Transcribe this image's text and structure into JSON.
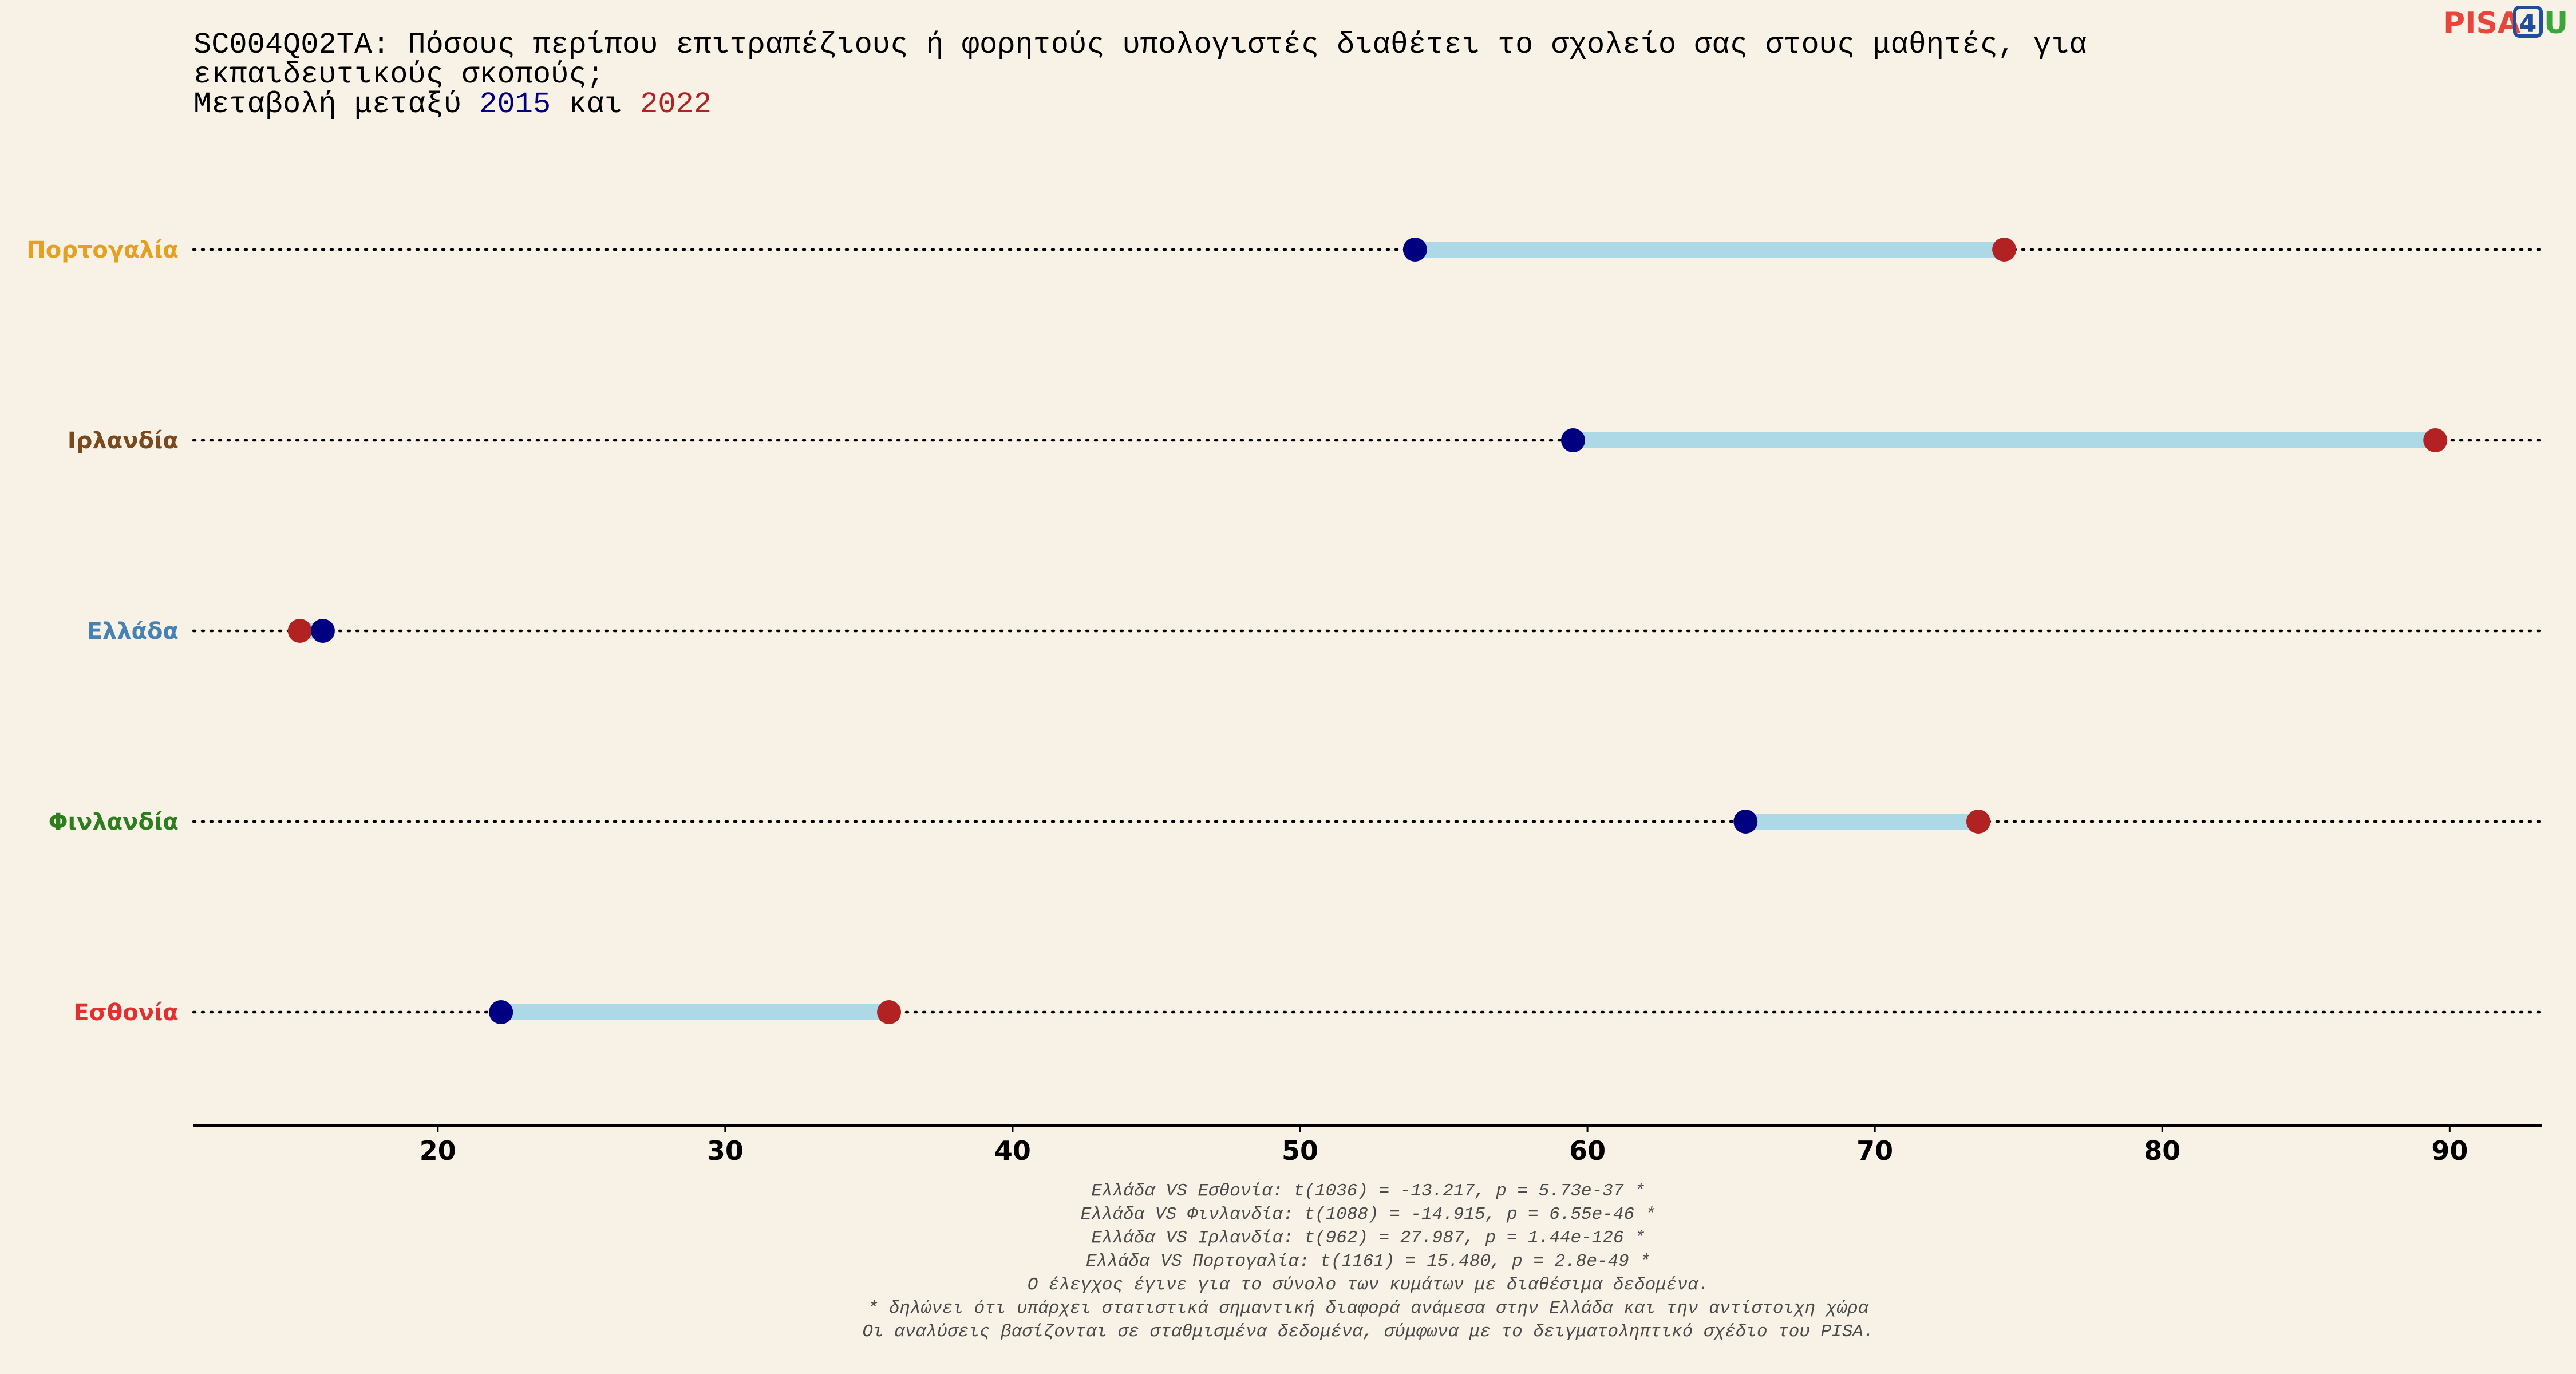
{
  "logo": {
    "part1": "PISA",
    "part2": "4",
    "part3": "U",
    "colors": {
      "part1": "#e8463c",
      "part2": "#1f4e9c",
      "part3": "#3aa53a"
    }
  },
  "chart_data": {
    "type": "dumbbell",
    "title": {
      "line1": "SC004Q02TA: Πόσους περίπου επιτραπέζιους ή φορητούς υπολογιστές διαθέτει το σχολείο σας στους μαθητές, για",
      "line2": "εκπαιδευτικούς σκοπούς;",
      "line3_prefix": "Μεταβολή μεταξύ ",
      "year_a": "2015",
      "line3_middle": " και ",
      "year_b": "2022"
    },
    "colors": {
      "year_a": "#000080",
      "year_b": "#b22222",
      "bar": "#add8e6",
      "dotted": "#000000"
    },
    "xlim": [
      11.5,
      93.2
    ],
    "xticks": [
      {
        "value": 20,
        "label": "20"
      },
      {
        "value": 30,
        "label": "30"
      },
      {
        "value": 40,
        "label": "40"
      },
      {
        "value": 50,
        "label": "50"
      },
      {
        "value": 60,
        "label": "60"
      },
      {
        "value": 70,
        "label": "70"
      },
      {
        "value": 80,
        "label": "80"
      },
      {
        "value": 90,
        "label": "90"
      }
    ],
    "grid": false,
    "countries": [
      {
        "name": "Πορτογαλία",
        "color": "#e6a020",
        "value_2015": 54.0,
        "value_2022": 74.5
      },
      {
        "name": "Ιρλανδία",
        "color": "#7a4a1e",
        "value_2015": 59.5,
        "value_2022": 89.5
      },
      {
        "name": "Ελλάδα",
        "color": "#4682b4",
        "value_2015": 16.0,
        "value_2022": 15.2
      },
      {
        "name": "Φινλανδία",
        "color": "#2e7d1e",
        "value_2015": 65.5,
        "value_2022": 73.6
      },
      {
        "name": "Εσθονία",
        "color": "#e03030",
        "value_2015": 22.2,
        "value_2022": 35.7
      }
    ],
    "notes": [
      "Ελλάδα VS Εσθονία: t(1036) = -13.217, p = 5.73e-37 *",
      "Ελλάδα VS Φινλανδία: t(1088) = -14.915, p = 6.55e-46 *",
      "Ελλάδα VS Ιρλανδία: t(962) = 27.987, p = 1.44e-126 *",
      "Ελλάδα VS Πορτογαλία: t(1161) = 15.480, p = 2.8e-49 *",
      "Ο έλεγχος έγινε για το σύνολο των κυμάτων με διαθέσιμα δεδομένα.",
      "* δηλώνει ότι υπάρχει στατιστικά σημαντική διαφορά ανάμεσα στην Ελλάδα και την αντίστοιχη χώρα",
      "Οι αναλύσεις βασίζονται σε σταθμισμένα δεδομένα, σύμφωνα με το δειγματοληπτικό σχέδιο του PISA."
    ]
  }
}
